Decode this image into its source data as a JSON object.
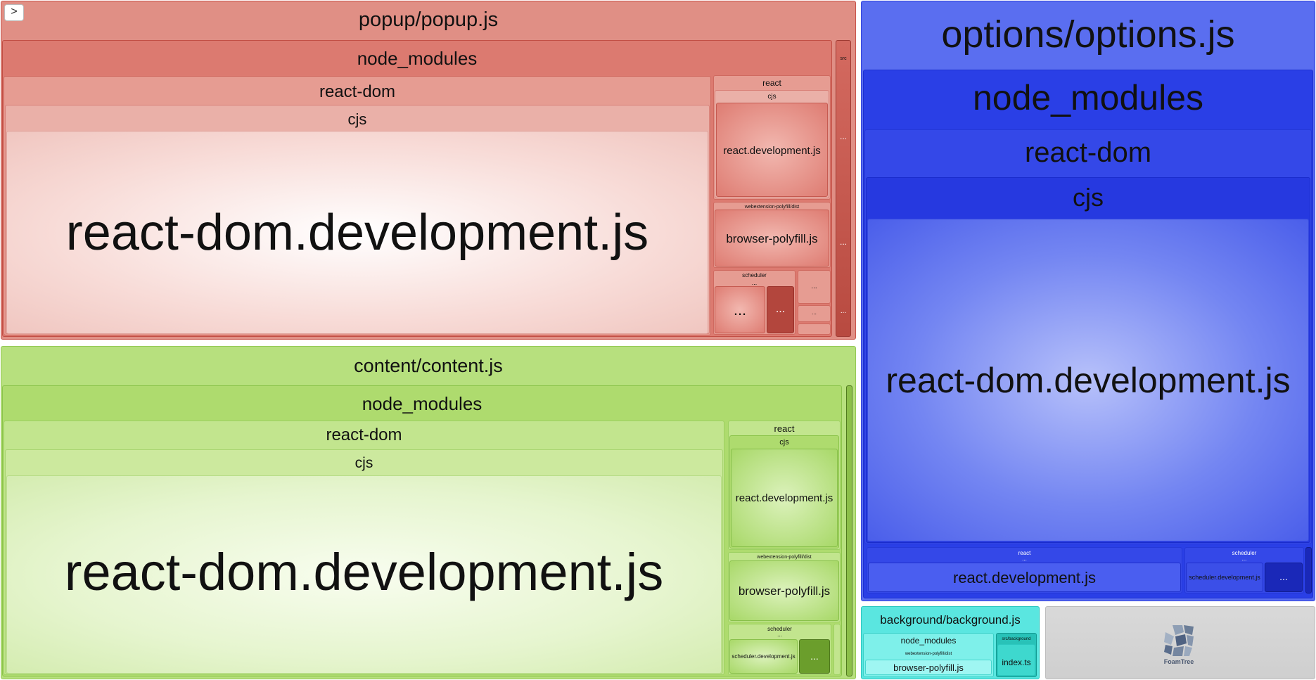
{
  "toggle": {
    "glyph": ">"
  },
  "popup": {
    "title": "popup/popup.js",
    "node_modules": "node_modules",
    "react_dom": "react-dom",
    "cjs": "cjs",
    "big_file": "react-dom.development.js",
    "react": "react",
    "react_cjs": "cjs",
    "react_dev": "react.development.js",
    "polyfill_dir": "webextension-polyfill/dist",
    "polyfill": "browser-polyfill.js",
    "scheduler": "scheduler",
    "ellipsis": "...",
    "src": "src"
  },
  "options": {
    "title": "options/options.js",
    "node_modules": "node_modules",
    "react_dom": "react-dom",
    "cjs": "cjs",
    "big_file": "react-dom.development.js",
    "react": "react",
    "react_dev": "react.development.js",
    "scheduler": "scheduler",
    "scheduler_dev": "scheduler.development.js",
    "ellipsis": "..."
  },
  "content": {
    "title": "content/content.js",
    "node_modules": "node_modules",
    "react_dom": "react-dom",
    "cjs": "cjs",
    "big_file": "react-dom.development.js",
    "react": "react",
    "react_cjs": "cjs",
    "react_dev": "react.development.js",
    "polyfill_dir": "webextension-polyfill/dist",
    "polyfill": "browser-polyfill.js",
    "scheduler": "scheduler",
    "scheduler_dev": "scheduler.development.js",
    "ellipsis": "..."
  },
  "background": {
    "title": "background/background.js",
    "node_modules": "node_modules",
    "polyfill_dir": "webextension-polyfill/dist",
    "polyfill": "browser-polyfill.js",
    "src_dir": "src/background",
    "index": "index.ts"
  },
  "logo": {
    "name": "FoamTree",
    "icon": "foamtree-logo-icon"
  }
}
